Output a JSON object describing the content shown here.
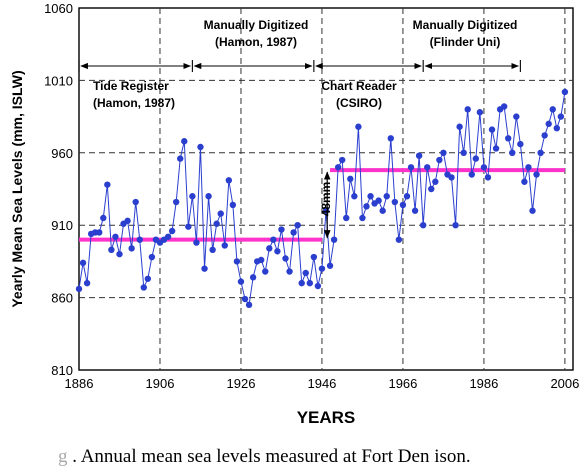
{
  "chart_data": {
    "type": "line",
    "title": "",
    "xlabel": "YEARS",
    "ylabel": "Yearly Mean Sea Levels (mm, ISLW)",
    "xlim": [
      1886,
      2008
    ],
    "ylim": [
      810,
      1060
    ],
    "xticks": [
      1886,
      1906,
      1926,
      1946,
      1966,
      1986,
      2006
    ],
    "yticks": [
      810,
      860,
      910,
      960,
      1010,
      1060
    ],
    "grid": true,
    "series": [
      {
        "name": "",
        "color": "#2b3fcf",
        "x": [
          1886,
          1887,
          1888,
          1889,
          1890,
          1891,
          1892,
          1893,
          1894,
          1895,
          1896,
          1897,
          1898,
          1899,
          1900,
          1901,
          1902,
          1903,
          1904,
          1905,
          1906,
          1907,
          1908,
          1909,
          1910,
          1911,
          1912,
          1913,
          1914,
          1915,
          1916,
          1917,
          1918,
          1919,
          1920,
          1921,
          1922,
          1923,
          1924,
          1925,
          1926,
          1927,
          1928,
          1929,
          1930,
          1931,
          1932,
          1933,
          1934,
          1935,
          1936,
          1937,
          1938,
          1939,
          1940,
          1941,
          1942,
          1943,
          1944,
          1945,
          1946,
          1947,
          1948,
          1949,
          1950,
          1951,
          1952,
          1953,
          1954,
          1955,
          1956,
          1957,
          1958,
          1959,
          1960,
          1961,
          1962,
          1963,
          1964,
          1965,
          1966,
          1967,
          1968,
          1969,
          1970,
          1971,
          1972,
          1973,
          1974,
          1975,
          1976,
          1977,
          1978,
          1979,
          1980,
          1981,
          1982,
          1983,
          1984,
          1985,
          1986,
          1987,
          1988,
          1989,
          1990,
          1991,
          1992,
          1993,
          1994,
          1995,
          1996,
          1997,
          1998,
          1999,
          2000,
          2001,
          2002,
          2003,
          2004,
          2005,
          2006
        ],
        "y": [
          866,
          884,
          870,
          904,
          905,
          905,
          915,
          938,
          893,
          902,
          890,
          911,
          913,
          894,
          926,
          900,
          867,
          873,
          888,
          900,
          898,
          900,
          902,
          906,
          926,
          956,
          968,
          909,
          930,
          898,
          964,
          880,
          930,
          893,
          911,
          918,
          896,
          941,
          924,
          885,
          871,
          859,
          855,
          874,
          885,
          886,
          878,
          894,
          900,
          892,
          907,
          887,
          878,
          905,
          910,
          870,
          877,
          870,
          888,
          868,
          880,
          920,
          882,
          900,
          950,
          955,
          915,
          942,
          930,
          978,
          915,
          923,
          930,
          925,
          927,
          920,
          930,
          970,
          926,
          900,
          924,
          930,
          950,
          920,
          958,
          910,
          950,
          935,
          940,
          955,
          960,
          945,
          943,
          910,
          978,
          960,
          990,
          945,
          956,
          988,
          950,
          943,
          976,
          963,
          990,
          992,
          970,
          960,
          985,
          966,
          940,
          950,
          920,
          945,
          960,
          972,
          980,
          990,
          977,
          985,
          1002
        ]
      }
    ],
    "mean_lines": [
      {
        "x": [
          1886,
          1946
        ],
        "y": 900
      },
      {
        "x": [
          1948,
          2006
        ],
        "y": 948
      }
    ],
    "annotations": {
      "tide_register": "Tide Register",
      "tide_register_src": "(Hamon, 1987)",
      "manual1": "Manually Digitized",
      "manual1_src": "(Hamon, 1987)",
      "chart_reader": "Chart Reader",
      "chart_reader_src": "(CSIRO)",
      "manual2": "Manually Digitized",
      "manual2_src": "(Flinder Uni)",
      "offset": "48mm"
    },
    "periods": [
      {
        "from": 1886,
        "to": 1914
      },
      {
        "from": 1914,
        "to": 1944
      },
      {
        "from": 1944,
        "to": 1971
      },
      {
        "from": 1971,
        "to": 1995
      }
    ]
  },
  "caption": {
    "prefix": "g ",
    "text": ". Annual mean sea levels measured   at Fort Den ison."
  }
}
